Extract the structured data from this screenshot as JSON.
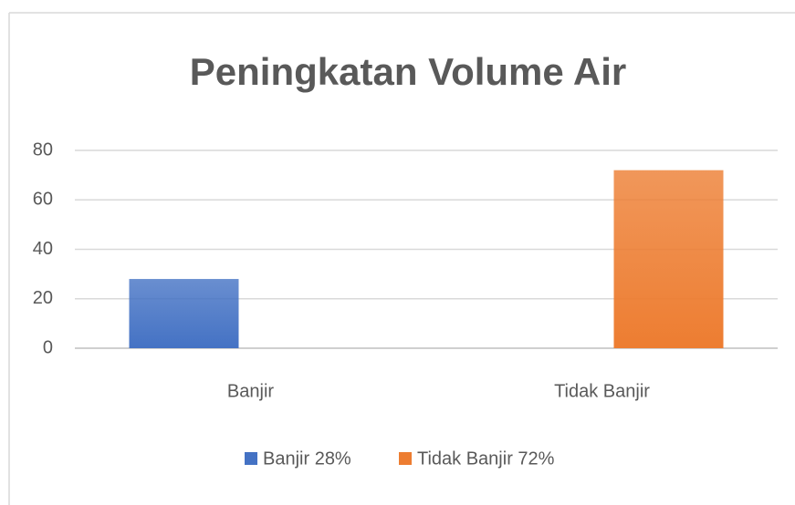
{
  "chart_data": {
    "type": "bar",
    "title": "Peningkatan Volume Air",
    "categories": [
      "Banjir",
      "Tidak Banjir"
    ],
    "series": [
      {
        "name": "Banjir 28%",
        "color": "#4472c4",
        "values": [
          28,
          null
        ]
      },
      {
        "name": "Tidak Banjir 72%",
        "color": "#ed7d31",
        "values": [
          null,
          72
        ]
      }
    ],
    "ylim": [
      0,
      80
    ],
    "yticks": [
      0,
      20,
      40,
      60,
      80
    ],
    "grid": true,
    "legend": "bottom"
  }
}
